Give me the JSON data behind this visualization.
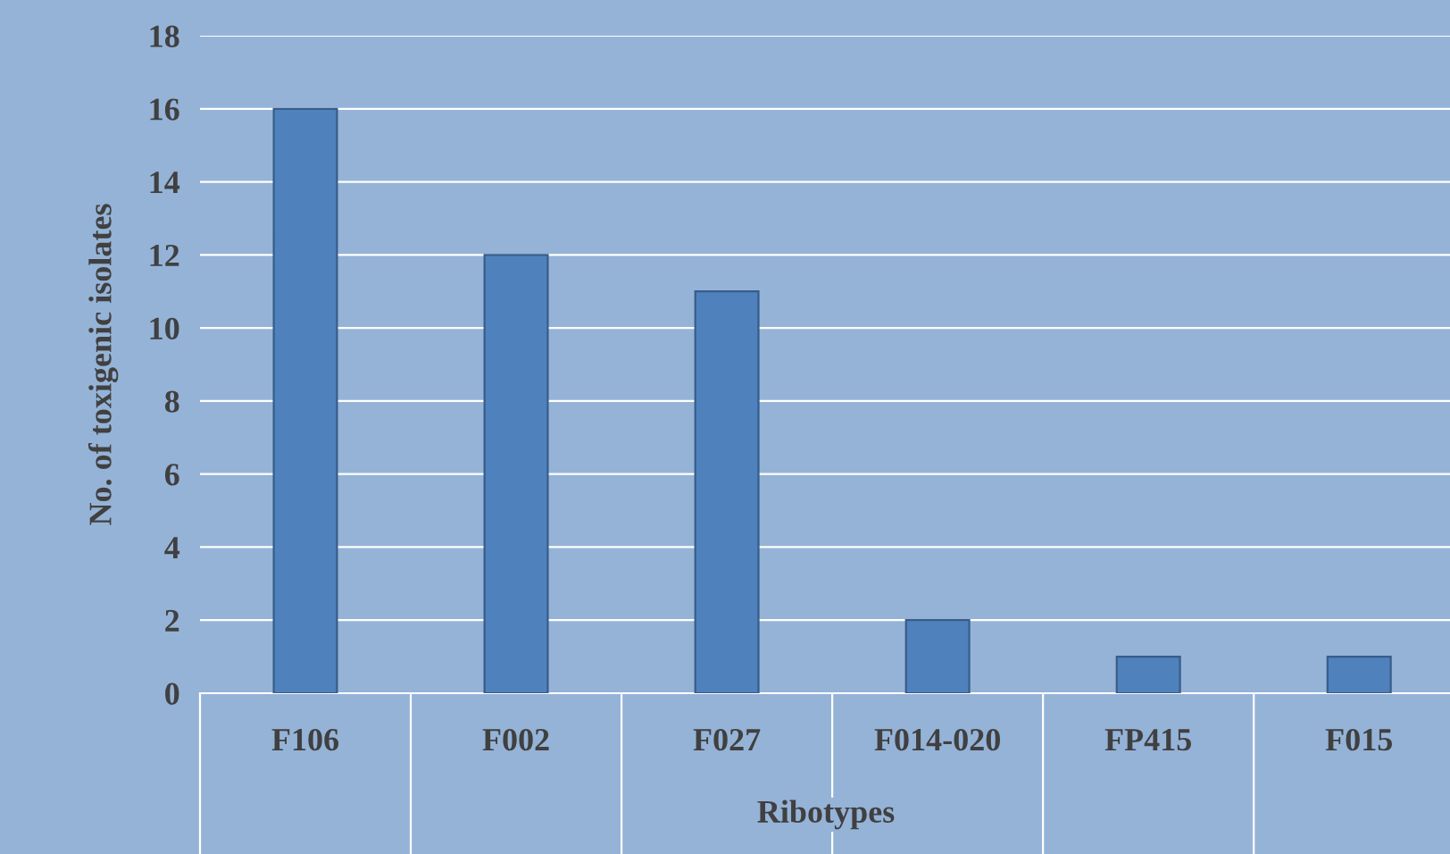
{
  "chart_data": {
    "type": "bar",
    "xlabel": "Ribotypes",
    "ylabel": "No. of toxigenic isolates",
    "categories": [
      "F106",
      "F002",
      "F027",
      "F014-020",
      "FP415",
      "F015"
    ],
    "values": [
      16,
      12,
      11,
      2,
      1,
      1
    ],
    "color": "#4f81bd",
    "ylim": [
      0,
      18
    ],
    "yticks": [
      0,
      2,
      4,
      6,
      8,
      10,
      12,
      14,
      16,
      18
    ],
    "grid": "y",
    "legend": false
  }
}
